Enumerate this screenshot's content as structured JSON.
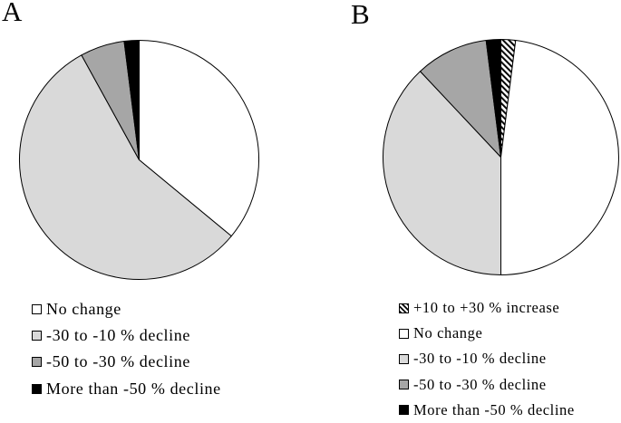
{
  "figure": {
    "background_color": "#ffffff",
    "outline_color": "#000000",
    "palette": {
      "white": "#ffffff",
      "light_gray": "#d9d9d9",
      "medium_gray": "#a6a6a6",
      "black": "#000000"
    }
  },
  "chart_data": [
    {
      "type": "pie",
      "panel_label": "A",
      "start_angle_deg": 0,
      "direction": "clockwise",
      "legend_position": "below",
      "slices": [
        {
          "label": "No change",
          "value_pct": 36,
          "fill": "#ffffff"
        },
        {
          "label": "-30 to -10 % decline",
          "value_pct": 56,
          "fill": "#d9d9d9"
        },
        {
          "label": "-50 to -30 % decline",
          "value_pct": 6,
          "fill": "#a6a6a6"
        },
        {
          "label": "More than -50 % decline",
          "value_pct": 2,
          "fill": "#000000"
        }
      ]
    },
    {
      "type": "pie",
      "panel_label": "B",
      "start_angle_deg": 0,
      "direction": "clockwise",
      "legend_position": "below",
      "slices": [
        {
          "label": "+10 to +30 % increase",
          "value_pct": 2,
          "fill": "hatch-diagonal"
        },
        {
          "label": "No change",
          "value_pct": 48,
          "fill": "#ffffff"
        },
        {
          "label": "-30 to -10 % decline",
          "value_pct": 38,
          "fill": "#d9d9d9"
        },
        {
          "label": "-50 to -30 % decline",
          "value_pct": 10,
          "fill": "#a6a6a6"
        },
        {
          "label": "More than -50 % decline",
          "value_pct": 2,
          "fill": "#000000"
        }
      ]
    }
  ]
}
